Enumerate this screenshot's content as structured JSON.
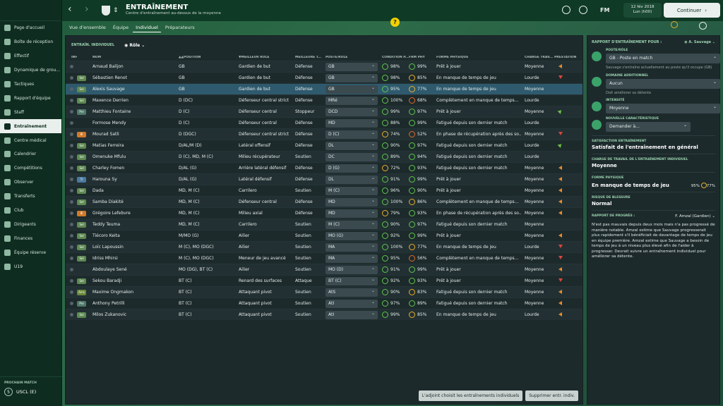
{
  "app": {
    "title": "ENTRAÎNEMENT",
    "subtitle": "Centre d'entraînement au-dessus de la moyenne",
    "continue_label": "Continuer",
    "date_line1": "12 fév 2018",
    "date_line2": "Lun (h00)",
    "help_glyph": "?"
  },
  "sidebar": {
    "items": [
      "Page d'accueil",
      "Boîte de réception",
      "Effectif",
      "Dynamique de grou...",
      "Tactiques",
      "Rapport d'équipe",
      "Staff",
      "Entraînement",
      "Centre médical",
      "Calendrier",
      "Compétitions",
      "Observer",
      "Transferts",
      "Club",
      "Dirigeants",
      "Finances",
      "Équipe réserve",
      "U19"
    ],
    "active_index": 7,
    "next_match_label": "PROCHAIN MATCH",
    "next_match_team": "USCL (E)",
    "next_match_badge": "5"
  },
  "tabs": [
    "Vue d'ensemble",
    "Équipe",
    "Individuel",
    "Préparateurs"
  ],
  "active_tab": 2,
  "view": {
    "label": "ENTRAÎN. INDIVIDUEL",
    "role_dropdown": "Rôle"
  },
  "table": {
    "headers": [
      "INF",
      "NOM",
      "▲▲POSITION",
      "▼MEILLEUR RÔLE",
      "MEILLEURE T...",
      "POSTE/RÔLE",
      "CONDITION P...",
      "FRM PHY",
      "FORME PHYSIQUE",
      "CHARGE TRAV...",
      "PRESTATION"
    ],
    "rows": [
      [
        "",
        "Arnaud Bailjon",
        "GB",
        "Gardien de but",
        "Défense",
        "GB",
        "98%",
        "99%",
        "Prêt à jouer",
        "Moyenne",
        "left"
      ],
      [
        "Sel",
        "Sébastien Renot",
        "GB",
        "Gardien de but",
        "Défense",
        "GB",
        "98%",
        "85%",
        "En manque de temps de jeu",
        "Lourde",
        "down"
      ],
      [
        "Sel",
        "Alexis Sauvage",
        "GB",
        "Gardien de but",
        "Défense",
        "GB",
        "95%",
        "77%",
        "En manque de temps de jeu",
        "Moyenne",
        ""
      ],
      [
        "Sel",
        "Maxence Derrien",
        "D (DC)",
        "Défenseur central strict",
        "Défense",
        "MRé",
        "100%",
        "68%",
        "Complètement en manque de temps...",
        "Lourde",
        ""
      ],
      [
        "Pre",
        "Matthieu Fontaine",
        "D (C)",
        "Défenseur central",
        "Stoppeur",
        "DCD",
        "99%",
        "97%",
        "Prêt à jouer",
        "Moyenne",
        "right"
      ],
      [
        "",
        "Formose Mendy",
        "D (C)",
        "Défenseur central",
        "Défense",
        "MD",
        "88%",
        "99%",
        "Fatigué depuis son dernier match",
        "Lourde",
        ""
      ],
      [
        "Bl",
        "Mourad Satli",
        "D (DGC)",
        "Défenseur central strict",
        "Défense",
        "D (C)",
        "74%",
        "52%",
        "En phase de récupération après des so...",
        "Moyenne",
        "down"
      ],
      [
        "Sel",
        "Matias Ferreira",
        "D/AL/M (D)",
        "Latéral offensif",
        "Défense",
        "DL",
        "90%",
        "97%",
        "Fatigué depuis son dernier match",
        "Lourde",
        "right"
      ],
      [
        "Sel",
        "Omenuke Mfulu",
        "D (C), MD, M (C)",
        "Milieu récupérateur",
        "Soutien",
        "DC",
        "89%",
        "94%",
        "Fatigué depuis son dernier match",
        "Lourde",
        ""
      ],
      [
        "Sel",
        "Charley Fomen",
        "D/AL (G)",
        "Arrière latéral défensif",
        "Défense",
        "D (G)",
        "72%",
        "93%",
        "Fatigué depuis son dernier match",
        "Moyenne",
        "left"
      ],
      [
        "Tr",
        "Harouna Sy",
        "D/AL (G)",
        "Latéral défensif",
        "Défense",
        "DL",
        "91%",
        "99%",
        "Prêt à jouer",
        "Moyenne",
        "left"
      ],
      [
        "Sel",
        "Dada",
        "MD, M (C)",
        "Carrilero",
        "Soutien",
        "M (C)",
        "96%",
        "90%",
        "Prêt à jouer",
        "Moyenne",
        "left"
      ],
      [
        "Sel",
        "Samba Diakité",
        "MD, M (C)",
        "Défenseur central",
        "Défense",
        "MD",
        "100%",
        "86%",
        "Complètement en manque de temps...",
        "Moyenne",
        "left"
      ],
      [
        "Bl",
        "Grégoire Lefebvre",
        "MD, M (C)",
        "Milieu axial",
        "Défense",
        "MD",
        "79%",
        "93%",
        "En phase de récupération après des so...",
        "Moyenne",
        "left"
      ],
      [
        "Sel",
        "Teddy Teuma",
        "MD, M (C)",
        "Carrilero",
        "Soutien",
        "M (C)",
        "90%",
        "97%",
        "Fatigué depuis son dernier match",
        "Moyenne",
        ""
      ],
      [
        "Sel",
        "Tiécoro Keita",
        "M/MO (G)",
        "Ailier",
        "Soutien",
        "MO (G)",
        "92%",
        "99%",
        "Prêt à jouer",
        "Moyenne",
        "left"
      ],
      [
        "Sel",
        "Loïc Lapoussin",
        "M (C), MO (DGC)",
        "Ailier",
        "Soutien",
        "MA",
        "100%",
        "77%",
        "En manque de temps de jeu",
        "Lourde",
        "down"
      ],
      [
        "Sel",
        "Idriss Mhirsi",
        "M (C), MO (DGC)",
        "Meneur de jeu avancé",
        "Soutien",
        "MA",
        "95%",
        "56%",
        "Complètement en manque de temps...",
        "Moyenne",
        "down"
      ],
      [
        "",
        "Abdoulaye Sené",
        "MO (DG), BT (C)",
        "Ailier",
        "Soutien",
        "MO (D)",
        "91%",
        "99%",
        "Prêt à jouer",
        "Moyenne",
        "left"
      ],
      [
        "Sel",
        "Sekou Baradji",
        "BT (C)",
        "Renard des surfaces",
        "Attaque",
        "BT (C)",
        "92%",
        "93%",
        "Prêt à jouer",
        "Moyenne",
        "down"
      ],
      [
        "Ams",
        "Maxime Ongmakon",
        "BT (C)",
        "Attaquant pivot",
        "Soutien",
        "AtS",
        "90%",
        "83%",
        "Fatigué depuis son dernier match",
        "Moyenne",
        "left"
      ],
      [
        "Pre",
        "Anthony Petrilli",
        "BT (C)",
        "Attaquant pivot",
        "Soutien",
        "AtI",
        "97%",
        "89%",
        "Fatigué depuis son dernier match",
        "Moyenne",
        "left"
      ],
      [
        "Sel",
        "Milos Zukanovic",
        "BT (C)",
        "Attaquant pivot",
        "Soutien",
        "AtI",
        "99%",
        "85%",
        "En manque de temps de jeu",
        "Lourde",
        "left"
      ]
    ],
    "selected_index": 2
  },
  "buttons": {
    "assistant": "L'adjoint choisit les entraînements individuels",
    "remove": "Supprimer entr. indiv."
  },
  "panel": {
    "header_label": "RAPPORT D'ENTRAÎNEMENT POUR :",
    "player": "A. Sauvage",
    "poste_label": "POSTE/RÔLE",
    "poste_value": "GB - Poste en match",
    "poste_note": "Sauvage s'entraîne actuellement au poste qu'il occupe (GB)",
    "domaine_label": "DOMAINE ADDITIONNEL",
    "domaine_value": "Aucun",
    "domaine_note": "Doit améliorer sa détente",
    "intensite_label": "INTENSITÉ",
    "intensite_value": "Moyenne",
    "carac_label": "NOUVELLE CARACTÉRISTIQUE",
    "carac_value": "Demander à...",
    "satisfaction_label": "SATISFACTION ENTRAÎNEMENT",
    "satisfaction_value": "Satisfait de l'entraînement en général",
    "charge_label": "CHARGE DE TRAVAIL DE L'ENTRAÎNEMENT INDIVIDUEL",
    "charge_value": "Moyenne",
    "forme_label": "FORME PHYSIQUE",
    "forme_value": "En manque de temps de jeu",
    "forme_pct1": "95%",
    "forme_pct2": "77%",
    "risque_label": "RISQUE DE BLESSURE",
    "risque_value": "Normal",
    "rapport_label": "RAPPORT DE PROGRÈS :",
    "rapport_author": "F. Amzal (Gardien)",
    "rapport_text": "N'est pas mauvais depuis deux mois mais n'a pas progressé de manière notable. Amzal estime que Sauvage progresserait plus rapidement s'il bénéficiait de davantage de temps de jeu en équipe première. Amzal estime que Sauvage a besoin de temps de jeu à un niveau plus élevé afin de l'aider à progresser. Devrait suivre un entraînement individuel pour améliorer sa détente."
  },
  "colors": {
    "accent": "#3ba36a",
    "ring_good": "#5fc74d",
    "ring_mid": "#e8b02a",
    "ring_low": "#e06a2a"
  }
}
